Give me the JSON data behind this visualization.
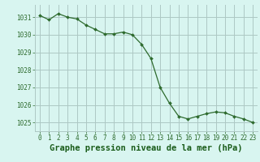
{
  "x": [
    0,
    1,
    2,
    3,
    4,
    5,
    6,
    7,
    8,
    9,
    10,
    11,
    12,
    13,
    14,
    15,
    16,
    17,
    18,
    19,
    20,
    21,
    22,
    23
  ],
  "y": [
    1031.1,
    1030.85,
    1031.2,
    1031.0,
    1030.9,
    1030.55,
    1030.3,
    1030.05,
    1030.05,
    1030.15,
    1030.0,
    1029.45,
    1028.65,
    1027.0,
    1026.1,
    1025.35,
    1025.2,
    1025.35,
    1025.5,
    1025.6,
    1025.55,
    1025.35,
    1025.2,
    1025.0
  ],
  "line_color": "#2d6a2d",
  "marker_color": "#2d6a2d",
  "bg_color": "#d8f5f0",
  "grid_major_color": "#adc8c4",
  "grid_minor_color": "#c8deda",
  "xlabel": "Graphe pression niveau de la mer (hPa)",
  "xlabel_color": "#1a5c1a",
  "tick_label_color": "#2d6a2d",
  "ylim": [
    1024.5,
    1031.7
  ],
  "yticks": [
    1025,
    1026,
    1027,
    1028,
    1029,
    1030,
    1031
  ],
  "xticks": [
    0,
    1,
    2,
    3,
    4,
    5,
    6,
    7,
    8,
    9,
    10,
    11,
    12,
    13,
    14,
    15,
    16,
    17,
    18,
    19,
    20,
    21,
    22,
    23
  ],
  "tick_label_fontsize": 5.5,
  "xlabel_fontsize": 7.5,
  "marker_size": 2.0,
  "line_width": 0.9
}
